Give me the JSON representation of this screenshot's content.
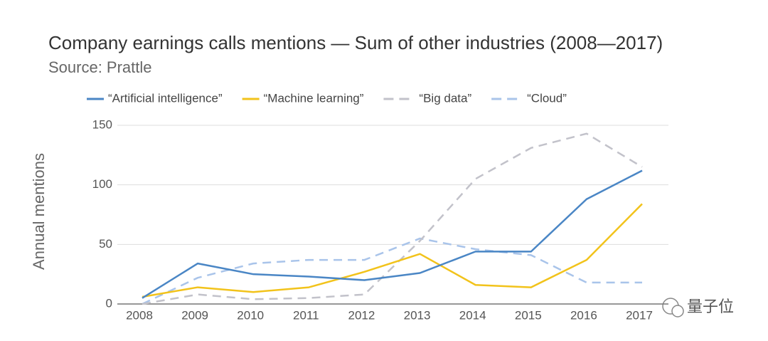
{
  "chart_data": {
    "type": "line",
    "title": "Company earnings calls mentions — Sum of other industries (2008—2017)",
    "subtitle": "Source: Prattle",
    "y_label": "Annual mentions",
    "watermark": "量子位",
    "x": [
      2008,
      2009,
      2010,
      2011,
      2012,
      2013,
      2014,
      2015,
      2016,
      2017
    ],
    "xlim": [
      2008,
      2017
    ],
    "xticks": [
      2008,
      2009,
      2010,
      2011,
      2012,
      2013,
      2014,
      2015,
      2016,
      2017
    ],
    "ylim": [
      0,
      150
    ],
    "yticks": [
      0,
      50,
      100,
      150
    ],
    "grid": true,
    "series": [
      {
        "name": "“Artificial intelligence”",
        "color": "#4a86c5",
        "dashed": false,
        "values": [
          5,
          34,
          25,
          23,
          20,
          26,
          44,
          44,
          88,
          112
        ]
      },
      {
        "name": "“Machine learning”",
        "color": "#f2c31b",
        "dashed": false,
        "values": [
          6,
          14,
          10,
          14,
          27,
          42,
          16,
          14,
          37,
          84
        ]
      },
      {
        "name": "“Big data”",
        "color": "#c2c2ca",
        "dashed": true,
        "values": [
          0,
          8,
          4,
          5,
          8,
          53,
          105,
          131,
          143,
          115
        ]
      },
      {
        "name": "“Cloud”",
        "color": "#a9c4ea",
        "dashed": true,
        "values": [
          0,
          22,
          34,
          37,
          37,
          55,
          46,
          41,
          18,
          18
        ]
      }
    ]
  }
}
